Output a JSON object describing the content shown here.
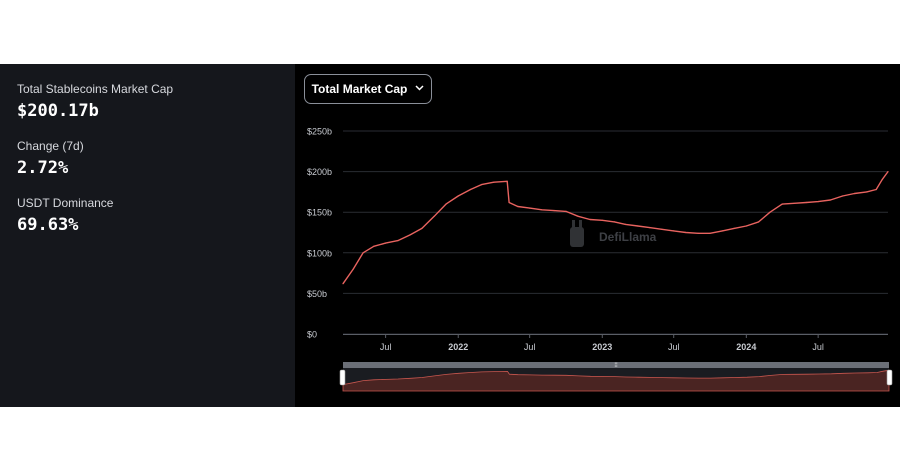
{
  "stats": [
    {
      "label": "Total Stablecoins Market Cap",
      "value": "$200.17b"
    },
    {
      "label": "Change (7d)",
      "value": "2.72%"
    },
    {
      "label": "USDT Dominance",
      "value": "69.63%"
    }
  ],
  "dropdown": {
    "label": "Total Market Cap"
  },
  "watermark": "DefiLlama",
  "colors": {
    "line": "#e8635f",
    "panel": "#15171c",
    "background": "#000000",
    "grid": "#2a2d33"
  },
  "chart_data": {
    "type": "line",
    "title": "",
    "xlabel": "",
    "ylabel": "",
    "ylim": [
      0,
      250
    ],
    "y_ticks": [
      {
        "value": 0,
        "label": "$0"
      },
      {
        "value": 50,
        "label": "$50b"
      },
      {
        "value": 100,
        "label": "$100b"
      },
      {
        "value": 150,
        "label": "$150b"
      },
      {
        "value": 200,
        "label": "$200b"
      },
      {
        "value": 250,
        "label": "$250b"
      }
    ],
    "xlim": [
      "2021-03-15",
      "2024-12-25"
    ],
    "x_ticks": [
      {
        "value": "2021-07-01",
        "label": "Jul",
        "bold": false
      },
      {
        "value": "2022-01-01",
        "label": "2022",
        "bold": true
      },
      {
        "value": "2022-07-01",
        "label": "Jul",
        "bold": false
      },
      {
        "value": "2023-01-01",
        "label": "2023",
        "bold": true
      },
      {
        "value": "2023-07-01",
        "label": "Jul",
        "bold": false
      },
      {
        "value": "2024-01-01",
        "label": "2024",
        "bold": true
      },
      {
        "value": "2024-07-01",
        "label": "Jul",
        "bold": false
      }
    ],
    "grid": true,
    "legend": "none",
    "series": [
      {
        "points": [
          [
            "2021-03-15",
            62
          ],
          [
            "2021-04-10",
            80
          ],
          [
            "2021-05-05",
            100
          ],
          [
            "2021-06-01",
            108
          ],
          [
            "2021-07-01",
            112
          ],
          [
            "2021-08-01",
            115
          ],
          [
            "2021-09-01",
            122
          ],
          [
            "2021-10-01",
            130
          ],
          [
            "2021-11-01",
            145
          ],
          [
            "2021-12-01",
            160
          ],
          [
            "2022-01-01",
            170
          ],
          [
            "2022-02-01",
            178
          ],
          [
            "2022-03-01",
            184
          ],
          [
            "2022-04-01",
            187
          ],
          [
            "2022-05-05",
            188
          ],
          [
            "2022-05-10",
            162
          ],
          [
            "2022-06-01",
            157
          ],
          [
            "2022-07-01",
            155
          ],
          [
            "2022-08-01",
            153
          ],
          [
            "2022-09-01",
            152
          ],
          [
            "2022-10-01",
            151
          ],
          [
            "2022-11-01",
            145
          ],
          [
            "2022-12-01",
            141
          ],
          [
            "2023-01-01",
            140
          ],
          [
            "2023-02-01",
            138
          ],
          [
            "2023-03-01",
            135
          ],
          [
            "2023-04-01",
            133
          ],
          [
            "2023-05-01",
            131
          ],
          [
            "2023-06-01",
            129
          ],
          [
            "2023-07-01",
            127
          ],
          [
            "2023-08-01",
            125
          ],
          [
            "2023-09-01",
            124
          ],
          [
            "2023-10-01",
            124
          ],
          [
            "2023-11-01",
            127
          ],
          [
            "2023-12-01",
            130
          ],
          [
            "2024-01-01",
            133
          ],
          [
            "2024-02-01",
            138
          ],
          [
            "2024-03-01",
            150
          ],
          [
            "2024-04-01",
            160
          ],
          [
            "2024-05-01",
            161
          ],
          [
            "2024-06-01",
            162
          ],
          [
            "2024-07-01",
            163
          ],
          [
            "2024-08-01",
            165
          ],
          [
            "2024-09-01",
            170
          ],
          [
            "2024-10-01",
            173
          ],
          [
            "2024-11-01",
            175
          ],
          [
            "2024-11-25",
            178
          ],
          [
            "2024-12-10",
            190
          ],
          [
            "2024-12-25",
            200
          ]
        ]
      }
    ]
  }
}
